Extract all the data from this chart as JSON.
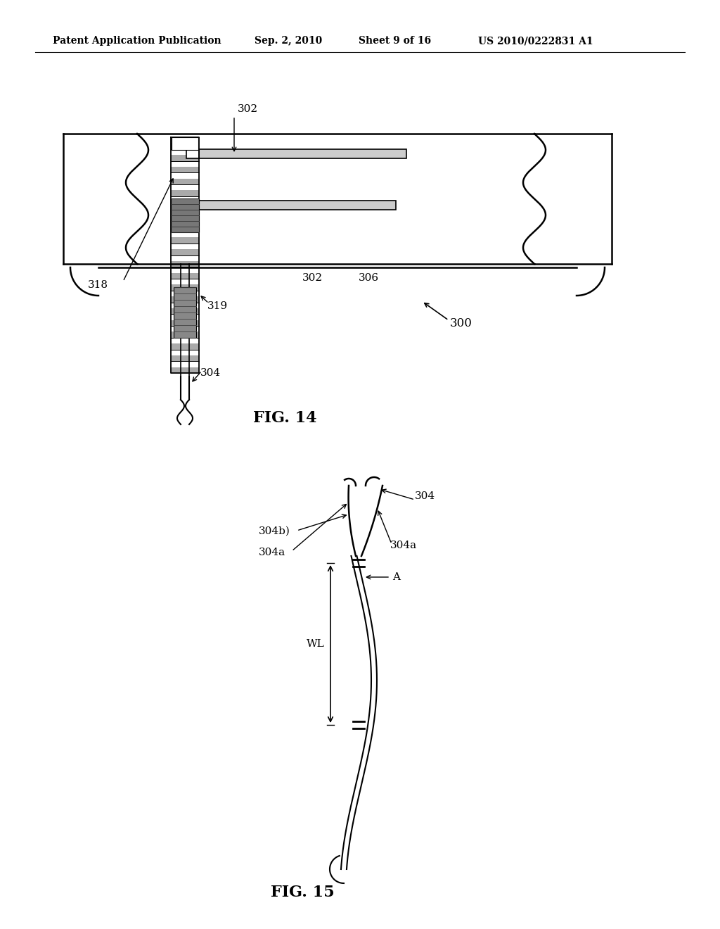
{
  "bg_color": "#ffffff",
  "header_text": "Patent Application Publication",
  "header_date": "Sep. 2, 2010",
  "header_sheet": "Sheet 9 of 16",
  "header_patent": "US 2010/0222831 A1",
  "fig14_label": "FIG. 14",
  "fig15_label": "FIG. 15"
}
